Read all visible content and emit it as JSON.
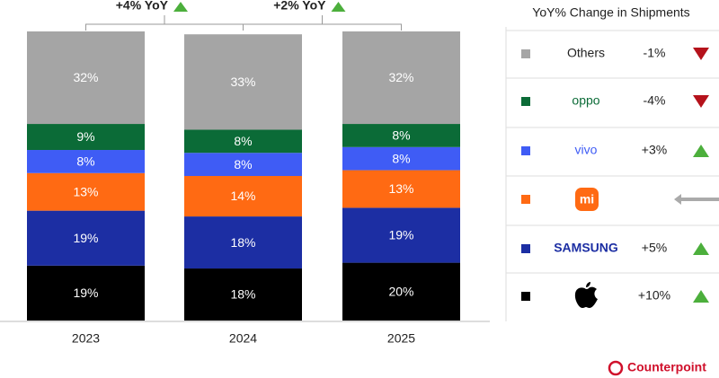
{
  "chart_data": {
    "type": "stacked_bar",
    "categories": [
      "2023",
      "2024",
      "2025"
    ],
    "ylim": [
      0,
      100
    ],
    "series": [
      {
        "color": "#000000",
        "values": [
          19,
          18,
          20
        ],
        "value_labels": [
          "19%",
          "18%",
          "20%"
        ],
        "yoy": {
          "value": 10,
          "label": "+10%"
        }
      },
      {
        "name": "SAMSUNG",
        "color": "#1c2ea3",
        "values": [
          19,
          18,
          19
        ],
        "value_labels": [
          "19%",
          "18%",
          "19%"
        ],
        "yoy": {
          "value": 5,
          "label": "+5%"
        }
      },
      {
        "name": "mi",
        "color": "#ff6a13",
        "values": [
          13,
          14,
          13
        ],
        "value_labels": [
          "13%",
          "14%",
          "13%"
        ],
        "yoy": {
          "value": 0
        }
      },
      {
        "name": "vivo",
        "color": "#3f5cf5",
        "values": [
          8,
          8,
          8
        ],
        "value_labels": [
          "8%",
          "8%",
          "8%"
        ],
        "yoy": {
          "value": 3,
          "label": "+3%"
        }
      },
      {
        "name": "oppo",
        "color": "#0b6b37",
        "values": [
          9,
          8,
          8
        ],
        "value_labels": [
          "9%",
          "8%",
          "8%"
        ],
        "yoy": {
          "value": -4,
          "label": "-4%"
        }
      },
      {
        "name": "Others",
        "color": "#a5a5a5",
        "values": [
          32,
          33,
          32
        ],
        "value_labels": [
          "32%",
          "33%",
          "32%"
        ],
        "yoy": {
          "value": -1,
          "label": "-1%"
        }
      }
    ],
    "annotations": [
      "+4% YoY",
      "+2% YoY"
    ],
    "legend_title": "YoY% Change in Shipments",
    "source": "Counterpoint"
  }
}
